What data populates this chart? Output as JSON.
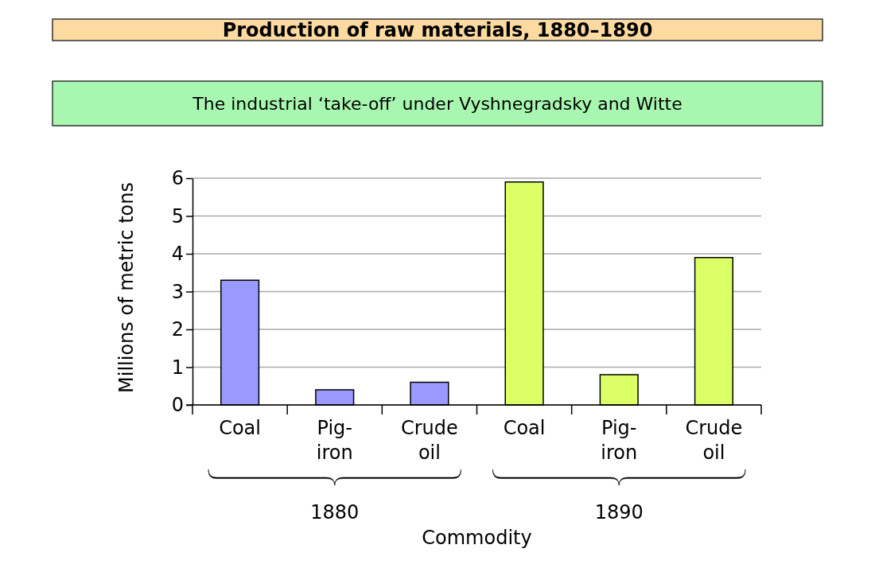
{
  "chart_data": {
    "type": "bar",
    "title": "Production of raw materials, 1880–1890",
    "subtitle": "The industrial ‘take-off’ under Vyshnegradsky and Witte",
    "xlabel": "Commodity",
    "ylabel": "Millions of metric tons",
    "categories": [
      "Coal",
      "Pig-iron",
      "Crude oil",
      "Coal",
      "Pig-iron",
      "Crude oil"
    ],
    "values": [
      3.3,
      0.4,
      0.6,
      5.9,
      0.8,
      3.9
    ],
    "colors": [
      "#9999ff",
      "#9999ff",
      "#9999ff",
      "#ddff66",
      "#ddff66",
      "#ddff66"
    ],
    "annotations": [
      "1880",
      "1890"
    ],
    "ylim": [
      0,
      6
    ],
    "yticks": [
      0,
      1,
      2,
      3,
      4,
      5,
      6
    ],
    "grid": "y"
  }
}
